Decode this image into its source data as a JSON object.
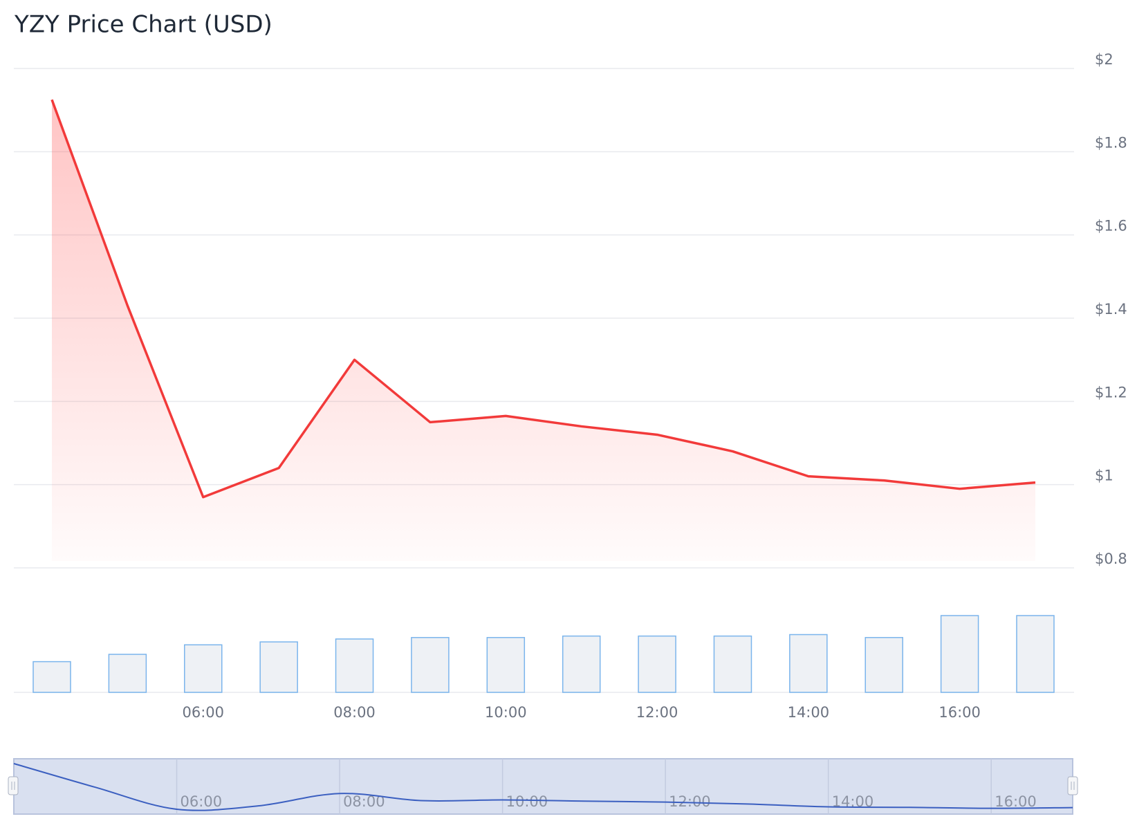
{
  "chart_data": {
    "type": "line",
    "title": "YZY Price Chart (USD)",
    "categories": [
      null,
      null,
      "06:00",
      null,
      "08:00",
      null,
      "10:00",
      null,
      "12:00",
      null,
      "14:00",
      null,
      "16:00",
      null
    ],
    "values": [
      1.925,
      1.43,
      0.97,
      1.04,
      1.3,
      1.15,
      1.165,
      1.14,
      1.12,
      1.08,
      1.02,
      1.01,
      0.99,
      1.005
    ],
    "color": "#f23a3a",
    "ylim": [
      0.8,
      2
    ],
    "yticks": [
      {
        "value": 0.8,
        "label": "$0.8"
      },
      {
        "value": 1,
        "label": "$1"
      },
      {
        "value": 1.2,
        "label": "$1.2"
      },
      {
        "value": 1.4,
        "label": "$1.4"
      },
      {
        "value": 1.6,
        "label": "$1.6"
      },
      {
        "value": 1.8,
        "label": "$1.8"
      },
      {
        "value": 2,
        "label": "$2"
      }
    ],
    "grid": true,
    "volume": {
      "type": "bar",
      "values": [
        42,
        52,
        65,
        69,
        73,
        75,
        75,
        77,
        77,
        77,
        79,
        75,
        105,
        105
      ],
      "color": "#eef1f5",
      "edge_color": "#7ab4ec"
    },
    "navigator": {
      "color": "#3b5fc0"
    }
  }
}
